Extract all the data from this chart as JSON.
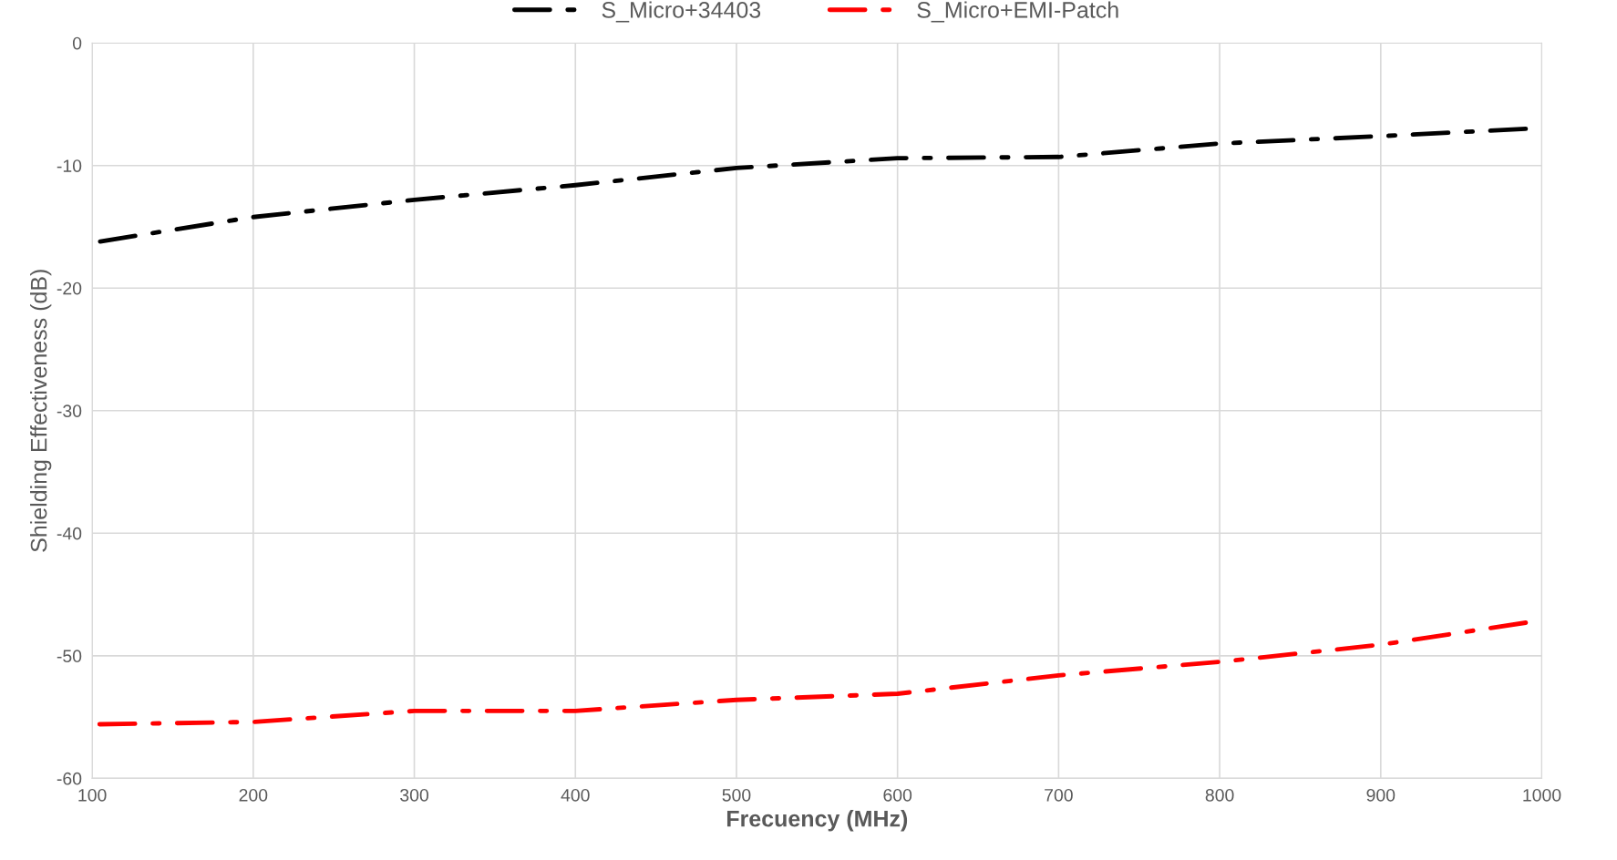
{
  "chart_data": {
    "type": "line",
    "xlabel": "Frecuency (MHz)",
    "ylabel": "Shielding Effectiveness (dB)",
    "x": [
      100,
      200,
      300,
      400,
      500,
      600,
      700,
      800,
      900,
      990
    ],
    "series": [
      {
        "name": "S_Micro+34403",
        "color": "#000000",
        "values": [
          -16.3,
          -14.2,
          -12.8,
          -11.6,
          -10.2,
          -9.4,
          -9.3,
          -8.2,
          -7.6,
          -7.0
        ]
      },
      {
        "name": "S_Micro+EMI-Patch",
        "color": "#ff0000",
        "values": [
          -55.6,
          -55.4,
          -54.5,
          -54.5,
          -53.6,
          -53.1,
          -51.6,
          -50.5,
          -49.1,
          -47.3
        ]
      }
    ],
    "xlim": [
      100,
      1000
    ],
    "xticks": [
      100,
      200,
      300,
      400,
      500,
      600,
      700,
      800,
      900,
      1000
    ],
    "ylim": [
      -60,
      0
    ],
    "yticks": [
      -60,
      -50,
      -40,
      -30,
      -20,
      -10,
      0
    ],
    "grid": true,
    "legend": "top",
    "marker": "none",
    "line_style": "dashdot"
  }
}
